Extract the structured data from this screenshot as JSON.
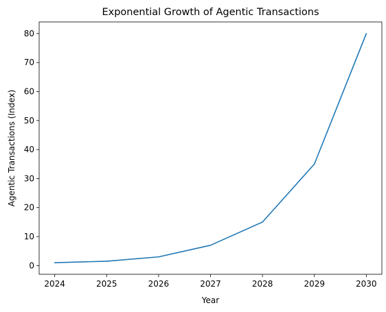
{
  "chart_data": {
    "type": "line",
    "title": "Exponential Growth of Agentic Transactions",
    "xlabel": "Year",
    "ylabel": "Agentic Transactions (Index)",
    "x": [
      2024,
      2025,
      2026,
      2027,
      2028,
      2029,
      2030
    ],
    "series": [
      {
        "values": [
          1,
          1.5,
          3,
          7,
          15,
          35,
          80
        ],
        "color": "#1f77b4"
      }
    ],
    "xticks": [
      "2024",
      "2025",
      "2026",
      "2027",
      "2028",
      "2029",
      "2030"
    ],
    "yticks": [
      "0",
      "10",
      "20",
      "30",
      "40",
      "50",
      "60",
      "70",
      "80"
    ],
    "xlim": [
      2023.7,
      2030.3
    ],
    "ylim": [
      -3.0,
      84.0
    ],
    "grid": false,
    "legend": "none"
  }
}
